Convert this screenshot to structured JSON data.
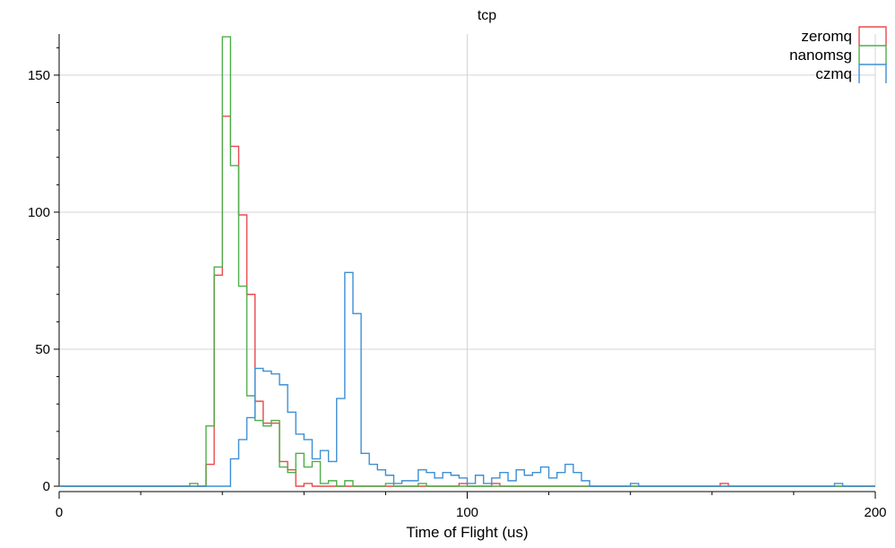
{
  "chart_data": {
    "type": "step-histogram",
    "title": "tcp",
    "xlabel": "Time of Flight (us)",
    "ylabel": "",
    "xlim": [
      0,
      200
    ],
    "ylim": [
      0,
      165
    ],
    "x_ticks": [
      0,
      100,
      200
    ],
    "y_ticks": [
      0,
      50,
      100,
      150
    ],
    "grid": true,
    "legend_position": "top-right",
    "bin_width": 2,
    "series": [
      {
        "name": "zeromq",
        "color": "#e8494d",
        "points": [
          [
            0,
            0
          ],
          [
            36,
            0
          ],
          [
            36,
            8
          ],
          [
            38,
            8
          ],
          [
            38,
            77
          ],
          [
            40,
            77
          ],
          [
            40,
            135
          ],
          [
            42,
            135
          ],
          [
            42,
            124
          ],
          [
            44,
            124
          ],
          [
            44,
            99
          ],
          [
            46,
            99
          ],
          [
            46,
            70
          ],
          [
            48,
            70
          ],
          [
            48,
            31
          ],
          [
            50,
            31
          ],
          [
            50,
            23
          ],
          [
            52,
            23
          ],
          [
            52,
            23
          ],
          [
            54,
            23
          ],
          [
            54,
            9
          ],
          [
            56,
            9
          ],
          [
            56,
            6
          ],
          [
            58,
            6
          ],
          [
            58,
            0
          ],
          [
            60,
            0
          ],
          [
            60,
            1
          ],
          [
            62,
            1
          ],
          [
            62,
            0
          ],
          [
            98,
            0
          ],
          [
            98,
            1
          ],
          [
            100,
            1
          ],
          [
            100,
            0
          ],
          [
            106,
            0
          ],
          [
            106,
            1
          ],
          [
            108,
            1
          ],
          [
            108,
            0
          ],
          [
            162,
            0
          ],
          [
            162,
            1
          ],
          [
            164,
            1
          ],
          [
            164,
            0
          ],
          [
            200,
            0
          ]
        ]
      },
      {
        "name": "nanomsg",
        "color": "#4daf4a",
        "points": [
          [
            0,
            0
          ],
          [
            32,
            0
          ],
          [
            32,
            1
          ],
          [
            34,
            1
          ],
          [
            34,
            0
          ],
          [
            36,
            0
          ],
          [
            36,
            22
          ],
          [
            38,
            22
          ],
          [
            38,
            80
          ],
          [
            40,
            80
          ],
          [
            40,
            164
          ],
          [
            42,
            164
          ],
          [
            42,
            117
          ],
          [
            44,
            117
          ],
          [
            44,
            73
          ],
          [
            46,
            73
          ],
          [
            46,
            33
          ],
          [
            48,
            33
          ],
          [
            48,
            24
          ],
          [
            50,
            24
          ],
          [
            50,
            22
          ],
          [
            52,
            22
          ],
          [
            52,
            24
          ],
          [
            54,
            24
          ],
          [
            54,
            7
          ],
          [
            56,
            7
          ],
          [
            56,
            5
          ],
          [
            58,
            5
          ],
          [
            58,
            12
          ],
          [
            60,
            12
          ],
          [
            60,
            7
          ],
          [
            62,
            7
          ],
          [
            62,
            9
          ],
          [
            64,
            9
          ],
          [
            64,
            1
          ],
          [
            66,
            1
          ],
          [
            66,
            2
          ],
          [
            68,
            2
          ],
          [
            68,
            0
          ],
          [
            70,
            0
          ],
          [
            70,
            2
          ],
          [
            72,
            2
          ],
          [
            72,
            0
          ],
          [
            80,
            0
          ],
          [
            80,
            1
          ],
          [
            82,
            1
          ],
          [
            82,
            0
          ],
          [
            88,
            0
          ],
          [
            88,
            1
          ],
          [
            90,
            1
          ],
          [
            90,
            0
          ],
          [
            200,
            0
          ]
        ]
      },
      {
        "name": "czmq",
        "color": "#3f8fd4",
        "points": [
          [
            0,
            0
          ],
          [
            36,
            0
          ],
          [
            36,
            0
          ],
          [
            38,
            0
          ],
          [
            38,
            0
          ],
          [
            40,
            0
          ],
          [
            40,
            0
          ],
          [
            42,
            0
          ],
          [
            42,
            10
          ],
          [
            44,
            10
          ],
          [
            44,
            17
          ],
          [
            46,
            17
          ],
          [
            46,
            25
          ],
          [
            48,
            25
          ],
          [
            48,
            43
          ],
          [
            50,
            43
          ],
          [
            50,
            42
          ],
          [
            52,
            42
          ],
          [
            52,
            41
          ],
          [
            54,
            41
          ],
          [
            54,
            37
          ],
          [
            56,
            37
          ],
          [
            56,
            27
          ],
          [
            58,
            27
          ],
          [
            58,
            19
          ],
          [
            60,
            19
          ],
          [
            60,
            17
          ],
          [
            62,
            17
          ],
          [
            62,
            10
          ],
          [
            64,
            10
          ],
          [
            64,
            13
          ],
          [
            66,
            13
          ],
          [
            66,
            9
          ],
          [
            68,
            9
          ],
          [
            68,
            32
          ],
          [
            70,
            32
          ],
          [
            70,
            78
          ],
          [
            72,
            78
          ],
          [
            72,
            63
          ],
          [
            74,
            63
          ],
          [
            74,
            12
          ],
          [
            76,
            12
          ],
          [
            76,
            8
          ],
          [
            78,
            8
          ],
          [
            78,
            6
          ],
          [
            80,
            6
          ],
          [
            80,
            4
          ],
          [
            82,
            4
          ],
          [
            82,
            1
          ],
          [
            84,
            1
          ],
          [
            84,
            2
          ],
          [
            86,
            2
          ],
          [
            86,
            2
          ],
          [
            88,
            2
          ],
          [
            88,
            6
          ],
          [
            90,
            6
          ],
          [
            90,
            5
          ],
          [
            92,
            5
          ],
          [
            92,
            3
          ],
          [
            94,
            3
          ],
          [
            94,
            5
          ],
          [
            96,
            5
          ],
          [
            96,
            4
          ],
          [
            98,
            4
          ],
          [
            98,
            3
          ],
          [
            100,
            3
          ],
          [
            100,
            1
          ],
          [
            102,
            1
          ],
          [
            102,
            4
          ],
          [
            104,
            4
          ],
          [
            104,
            1
          ],
          [
            106,
            1
          ],
          [
            106,
            3
          ],
          [
            108,
            3
          ],
          [
            108,
            5
          ],
          [
            110,
            5
          ],
          [
            110,
            2
          ],
          [
            112,
            2
          ],
          [
            112,
            6
          ],
          [
            114,
            6
          ],
          [
            114,
            4
          ],
          [
            116,
            4
          ],
          [
            116,
            5
          ],
          [
            118,
            5
          ],
          [
            118,
            7
          ],
          [
            120,
            7
          ],
          [
            120,
            3
          ],
          [
            122,
            3
          ],
          [
            122,
            5
          ],
          [
            124,
            5
          ],
          [
            124,
            8
          ],
          [
            126,
            8
          ],
          [
            126,
            5
          ],
          [
            128,
            5
          ],
          [
            128,
            2
          ],
          [
            130,
            2
          ],
          [
            130,
            0
          ],
          [
            140,
            0
          ],
          [
            140,
            1
          ],
          [
            142,
            1
          ],
          [
            142,
            0
          ],
          [
            190,
            0
          ],
          [
            190,
            1
          ],
          [
            192,
            1
          ],
          [
            192,
            0
          ],
          [
            200,
            0
          ]
        ]
      }
    ]
  }
}
